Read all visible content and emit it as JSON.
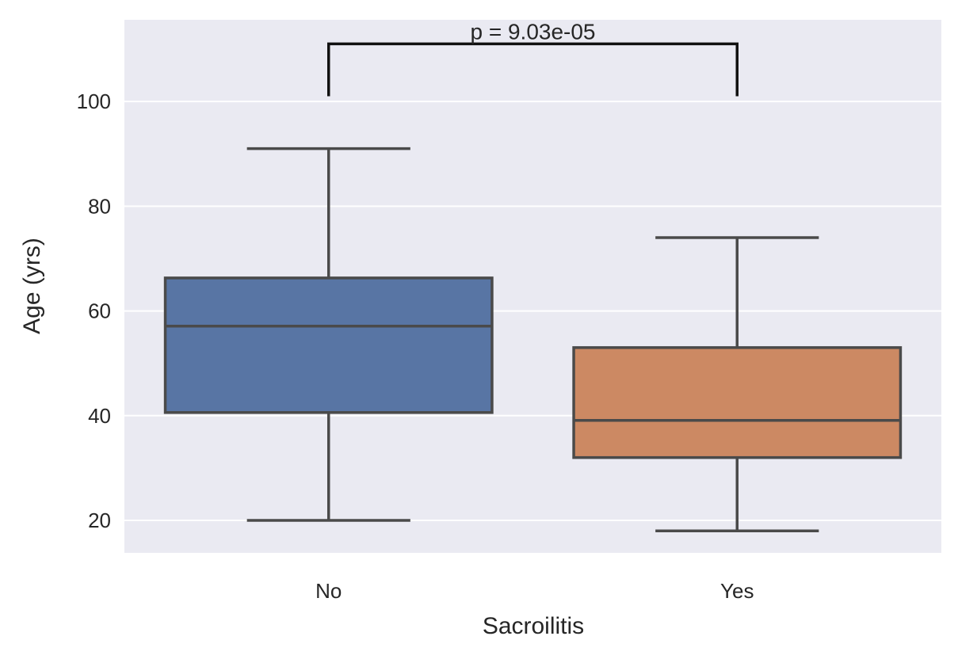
{
  "chart_data": {
    "type": "box",
    "title": "",
    "xlabel": "Sacroilitis",
    "ylabel": "Age (yrs)",
    "ylim": [
      13.8,
      115.6
    ],
    "yticks": [
      20,
      40,
      60,
      80,
      100
    ],
    "ytick_labels": [
      "20",
      "40",
      "60",
      "80",
      "100"
    ],
    "grid": true,
    "categories": [
      "No",
      "Yes"
    ],
    "series": [
      {
        "name": "No",
        "whisker_low": 20,
        "q1": 40.6,
        "median": 57.1,
        "q3": 66.3,
        "whisker_high": 91,
        "color": "#5875a4"
      },
      {
        "name": "Yes",
        "whisker_low": 18,
        "q1": 32,
        "median": 39.1,
        "q3": 53,
        "whisker_high": 74,
        "color": "#cc8963"
      }
    ],
    "annotation": {
      "text": "p = 9.03e-05",
      "bracket_y": 111,
      "bracket_bottom": 101,
      "between": [
        "No",
        "Yes"
      ]
    },
    "colors": {
      "background": "#eaeaf2",
      "grid": "#ffffff",
      "line": "#4a4a4a",
      "bracket": "#111111"
    }
  }
}
